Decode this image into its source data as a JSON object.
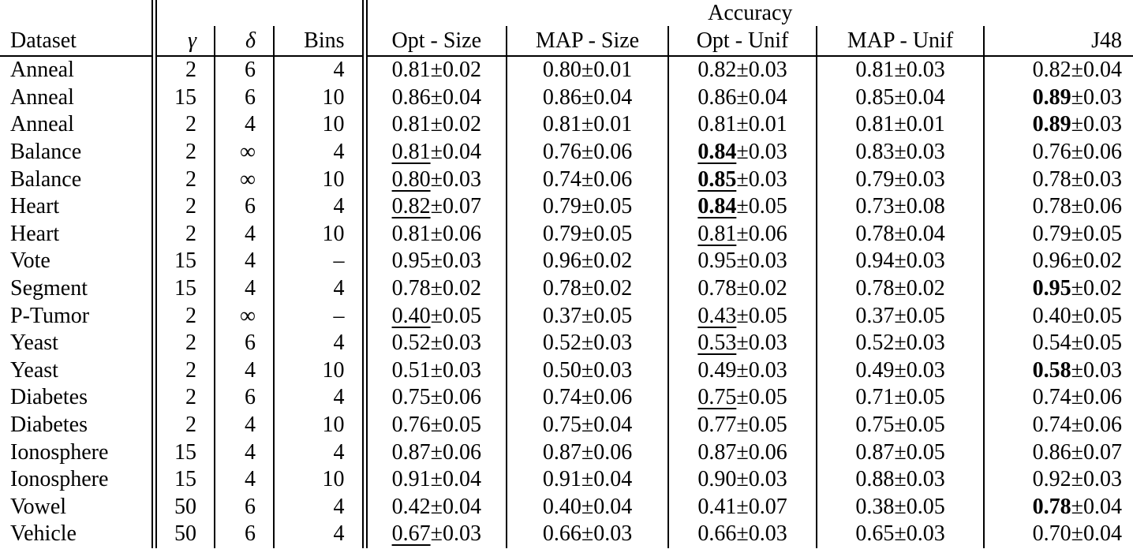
{
  "table": {
    "group_header": "Accuracy",
    "columns": [
      "Dataset",
      "γ",
      "δ",
      "Bins",
      "Opt - Size",
      "MAP - Size",
      "Opt - Unif",
      "MAP - Unif",
      "J48"
    ],
    "rows": [
      {
        "dataset": "Anneal",
        "gamma": "2",
        "delta": "6",
        "bins": "4",
        "acc": [
          {
            "v": "0.81",
            "e": "±0.02"
          },
          {
            "v": "0.80",
            "e": "±0.01"
          },
          {
            "v": "0.82",
            "e": "±0.03"
          },
          {
            "v": "0.81",
            "e": "±0.03"
          },
          {
            "v": "0.82",
            "e": "±0.04"
          }
        ]
      },
      {
        "dataset": "Anneal",
        "gamma": "15",
        "delta": "6",
        "bins": "10",
        "acc": [
          {
            "v": "0.86",
            "e": "±0.04"
          },
          {
            "v": "0.86",
            "e": "±0.04"
          },
          {
            "v": "0.86",
            "e": "±0.04"
          },
          {
            "v": "0.85",
            "e": "±0.04"
          },
          {
            "v": "0.89",
            "e": "±0.03",
            "b": true
          }
        ]
      },
      {
        "dataset": "Anneal",
        "gamma": "2",
        "delta": "4",
        "bins": "10",
        "acc": [
          {
            "v": "0.81",
            "e": "±0.02"
          },
          {
            "v": "0.81",
            "e": "±0.01"
          },
          {
            "v": "0.81",
            "e": "±0.01"
          },
          {
            "v": "0.81",
            "e": "±0.01"
          },
          {
            "v": "0.89",
            "e": "±0.03",
            "b": true
          }
        ]
      },
      {
        "dataset": "Balance",
        "gamma": "2",
        "delta": "∞",
        "bins": "4",
        "acc": [
          {
            "v": "0.81",
            "e": "±0.04",
            "u": true
          },
          {
            "v": "0.76",
            "e": "±0.06"
          },
          {
            "v": "0.84",
            "e": "±0.03",
            "b": true,
            "u": true
          },
          {
            "v": "0.83",
            "e": "±0.03"
          },
          {
            "v": "0.76",
            "e": "±0.06"
          }
        ]
      },
      {
        "dataset": "Balance",
        "gamma": "2",
        "delta": "∞",
        "bins": "10",
        "acc": [
          {
            "v": "0.80",
            "e": "±0.03",
            "u": true
          },
          {
            "v": "0.74",
            "e": "±0.06"
          },
          {
            "v": "0.85",
            "e": "±0.03",
            "b": true,
            "u": true
          },
          {
            "v": "0.79",
            "e": "±0.03"
          },
          {
            "v": "0.78",
            "e": "±0.03"
          }
        ]
      },
      {
        "dataset": "Heart",
        "gamma": "2",
        "delta": "6",
        "bins": "4",
        "acc": [
          {
            "v": "0.82",
            "e": "±0.07",
            "u": true
          },
          {
            "v": "0.79",
            "e": "±0.05"
          },
          {
            "v": "0.84",
            "e": "±0.05",
            "b": true,
            "u": true
          },
          {
            "v": "0.73",
            "e": "±0.08"
          },
          {
            "v": "0.78",
            "e": "±0.06"
          }
        ]
      },
      {
        "dataset": "Heart",
        "gamma": "2",
        "delta": "4",
        "bins": "10",
        "acc": [
          {
            "v": "0.81",
            "e": "±0.06"
          },
          {
            "v": "0.79",
            "e": "±0.05"
          },
          {
            "v": "0.81",
            "e": "±0.06",
            "u": true
          },
          {
            "v": "0.78",
            "e": "±0.04"
          },
          {
            "v": "0.79",
            "e": "±0.05"
          }
        ]
      },
      {
        "dataset": "Vote",
        "gamma": "15",
        "delta": "4",
        "bins": "–",
        "acc": [
          {
            "v": "0.95",
            "e": "±0.03"
          },
          {
            "v": "0.96",
            "e": "±0.02"
          },
          {
            "v": "0.95",
            "e": "±0.03"
          },
          {
            "v": "0.94",
            "e": "±0.03"
          },
          {
            "v": "0.96",
            "e": "±0.02"
          }
        ]
      },
      {
        "dataset": "Segment",
        "gamma": "15",
        "delta": "4",
        "bins": "4",
        "acc": [
          {
            "v": "0.78",
            "e": "±0.02"
          },
          {
            "v": "0.78",
            "e": "±0.02"
          },
          {
            "v": "0.78",
            "e": "±0.02"
          },
          {
            "v": "0.78",
            "e": "±0.02"
          },
          {
            "v": "0.95",
            "e": "±0.02",
            "b": true
          }
        ]
      },
      {
        "dataset": "P-Tumor",
        "gamma": "2",
        "delta": "∞",
        "bins": "–",
        "acc": [
          {
            "v": "0.40",
            "e": "±0.05",
            "u": true
          },
          {
            "v": "0.37",
            "e": "±0.05"
          },
          {
            "v": "0.43",
            "e": "±0.05",
            "u": true
          },
          {
            "v": "0.37",
            "e": "±0.05"
          },
          {
            "v": "0.40",
            "e": "±0.05"
          }
        ]
      },
      {
        "dataset": "Yeast",
        "gamma": "2",
        "delta": "6",
        "bins": "4",
        "acc": [
          {
            "v": "0.52",
            "e": "±0.03"
          },
          {
            "v": "0.52",
            "e": "±0.03"
          },
          {
            "v": "0.53",
            "e": "±0.03",
            "u": true
          },
          {
            "v": "0.52",
            "e": "±0.03"
          },
          {
            "v": "0.54",
            "e": "±0.05"
          }
        ]
      },
      {
        "dataset": "Yeast",
        "gamma": "2",
        "delta": "4",
        "bins": "10",
        "acc": [
          {
            "v": "0.51",
            "e": "±0.03"
          },
          {
            "v": "0.50",
            "e": "±0.03"
          },
          {
            "v": "0.49",
            "e": "±0.03"
          },
          {
            "v": "0.49",
            "e": "±0.03"
          },
          {
            "v": "0.58",
            "e": "±0.03",
            "b": true
          }
        ]
      },
      {
        "dataset": "Diabetes",
        "gamma": "2",
        "delta": "6",
        "bins": "4",
        "acc": [
          {
            "v": "0.75",
            "e": "±0.06"
          },
          {
            "v": "0.74",
            "e": "±0.06"
          },
          {
            "v": "0.75",
            "e": "±0.05",
            "u": true
          },
          {
            "v": "0.71",
            "e": "±0.05"
          },
          {
            "v": "0.74",
            "e": "±0.06"
          }
        ]
      },
      {
        "dataset": "Diabetes",
        "gamma": "2",
        "delta": "4",
        "bins": "10",
        "acc": [
          {
            "v": "0.76",
            "e": "±0.05"
          },
          {
            "v": "0.75",
            "e": "±0.04"
          },
          {
            "v": "0.77",
            "e": "±0.05"
          },
          {
            "v": "0.75",
            "e": "±0.05"
          },
          {
            "v": "0.74",
            "e": "±0.06"
          }
        ]
      },
      {
        "dataset": "Ionosphere",
        "gamma": "15",
        "delta": "4",
        "bins": "4",
        "acc": [
          {
            "v": "0.87",
            "e": "±0.06"
          },
          {
            "v": "0.87",
            "e": "±0.06"
          },
          {
            "v": "0.87",
            "e": "±0.06"
          },
          {
            "v": "0.87",
            "e": "±0.05"
          },
          {
            "v": "0.86",
            "e": "±0.07"
          }
        ]
      },
      {
        "dataset": "Ionosphere",
        "gamma": "15",
        "delta": "4",
        "bins": "10",
        "acc": [
          {
            "v": "0.91",
            "e": "±0.04"
          },
          {
            "v": "0.91",
            "e": "±0.04"
          },
          {
            "v": "0.90",
            "e": "±0.03"
          },
          {
            "v": "0.88",
            "e": "±0.03"
          },
          {
            "v": "0.92",
            "e": "±0.03"
          }
        ]
      },
      {
        "dataset": "Vowel",
        "gamma": "50",
        "delta": "6",
        "bins": "4",
        "acc": [
          {
            "v": "0.42",
            "e": "±0.04"
          },
          {
            "v": "0.40",
            "e": "±0.04"
          },
          {
            "v": "0.41",
            "e": "±0.07"
          },
          {
            "v": "0.38",
            "e": "±0.05"
          },
          {
            "v": "0.78",
            "e": "±0.04",
            "b": true
          }
        ]
      },
      {
        "dataset": "Vehicle",
        "gamma": "50",
        "delta": "6",
        "bins": "4",
        "acc": [
          {
            "v": "0.67",
            "e": "±0.03",
            "u": true
          },
          {
            "v": "0.66",
            "e": "±0.03"
          },
          {
            "v": "0.66",
            "e": "±0.03"
          },
          {
            "v": "0.65",
            "e": "±0.03"
          },
          {
            "v": "0.70",
            "e": "±0.04"
          }
        ]
      }
    ]
  }
}
